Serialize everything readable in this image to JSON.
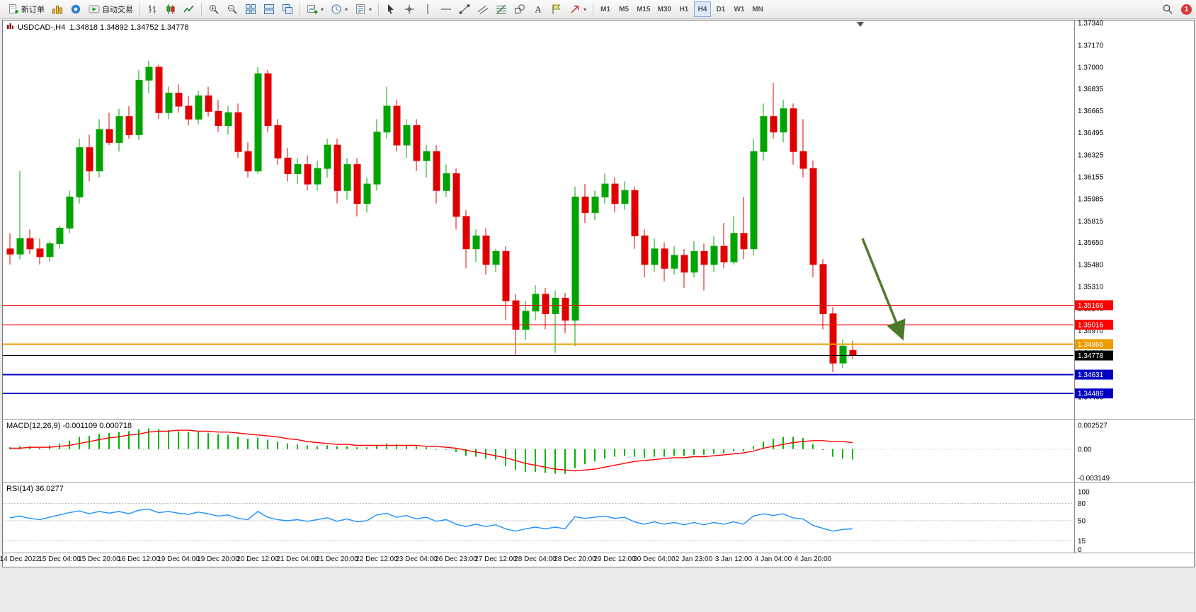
{
  "toolbar": {
    "groups": [
      {
        "buttons": [
          {
            "name": "new-order-button",
            "icon": "new-order-icon",
            "label": "新订单"
          },
          {
            "name": "charts-button",
            "icon": "charts-icon"
          },
          {
            "name": "community-button",
            "icon": "community-icon"
          },
          {
            "name": "autotrading-button",
            "icon": "autotrading-icon",
            "label": "自动交易"
          }
        ]
      },
      {
        "buttons": [
          {
            "name": "bars-chart-button",
            "icon": "ohlc-bars-icon"
          },
          {
            "name": "candles-chart-button",
            "icon": "candles-icon"
          },
          {
            "name": "line-chart-button",
            "icon": "line-chart-icon"
          }
        ]
      },
      {
        "buttons": [
          {
            "name": "zoom-in-button",
            "icon": "zoom-in-icon"
          },
          {
            "name": "zoom-out-button",
            "icon": "zoom-out-icon"
          },
          {
            "name": "tile-windows-button",
            "icon": "tile-windows-icon"
          },
          {
            "name": "window-list-button",
            "icon": "window-list-icon"
          },
          {
            "name": "cascade-windows-button",
            "icon": "cascade-icon"
          }
        ]
      },
      {
        "buttons": [
          {
            "name": "new-chart-button",
            "icon": "new-chart-icon",
            "dropdown": true
          },
          {
            "name": "periods-button",
            "icon": "clock-icon",
            "dropdown": true
          },
          {
            "name": "templates-button",
            "icon": "template-icon",
            "dropdown": true
          }
        ]
      },
      {
        "buttons": [
          {
            "name": "cursor-button",
            "icon": "cursor-icon"
          },
          {
            "name": "crosshair-button",
            "icon": "crosshair-icon"
          },
          {
            "name": "vertical-line-button",
            "icon": "vline-icon"
          },
          {
            "name": "horizontal-line-button",
            "icon": "hline-icon"
          },
          {
            "name": "trendline-button",
            "icon": "trendline-icon"
          },
          {
            "name": "channel-button",
            "icon": "channel-icon"
          },
          {
            "name": "fibonacci-button",
            "icon": "fibo-icon"
          },
          {
            "name": "shapes-button",
            "icon": "shapes-icon"
          },
          {
            "name": "text-button",
            "icon": "text-icon"
          },
          {
            "name": "label-button",
            "icon": "label-icon"
          },
          {
            "name": "arrows-button",
            "icon": "arrows-icon",
            "dropdown": true
          }
        ]
      }
    ],
    "timeframes": {
      "items": [
        "M1",
        "M5",
        "M15",
        "M30",
        "H1",
        "H4",
        "D1",
        "W1",
        "MN"
      ],
      "active": "H4"
    },
    "notification": {
      "count": "1"
    }
  },
  "chart_header": {
    "symbol": "USDCAD-,H4",
    "ohlc": "1.34818 1.34892 1.34752 1.34778"
  },
  "chart_data": [
    {
      "type": "candlestick",
      "title": "USDCAD H4",
      "up_color": "#00A400",
      "down_color": "#E00000",
      "y_range": [
        1.3429,
        1.3736
      ],
      "y_ticks": [
        "1.37340",
        "1.37170",
        "1.37000",
        "1.36835",
        "1.36665",
        "1.36495",
        "1.36325",
        "1.36155",
        "1.35985",
        "1.35815",
        "1.35650",
        "1.35480",
        "1.35310",
        "1.35140",
        "1.34970",
        "1.34800",
        "1.34630",
        "1.34460"
      ],
      "x_labels": [
        "14 Dec 2022",
        "15 Dec 04:00",
        "15 Dec 20:00",
        "16 Dec 12:00",
        "19 Dec 04:00",
        "19 Dec 20:00",
        "20 Dec 12:00",
        "21 Dec 04:00",
        "21 Dec 20:00",
        "22 Dec 12:00",
        "23 Dec 04:00",
        "26 Dec 23:00",
        "27 Dec 12:00",
        "28 Dec 04:00",
        "28 Dec 20:00",
        "29 Dec 12:00",
        "30 Dec 04:00",
        "2 Jan 23:00",
        "3 Jan 12:00",
        "4 Jan 04:00",
        "4 Jan 20:00"
      ],
      "levels": [
        {
          "price": 1.35166,
          "color": "#FF0000",
          "label": "1.35166",
          "width": 1,
          "type": "horizontal-line"
        },
        {
          "price": 1.35016,
          "color": "#FF0000",
          "label": "1.35016",
          "width": 1,
          "type": "horizontal-line"
        },
        {
          "price": 1.34866,
          "color": "#ED9B00",
          "label": "1.34866",
          "width": 2,
          "type": "horizontal-line"
        },
        {
          "price": 1.34778,
          "color": "#000000",
          "label": "1.34778",
          "width": 1,
          "type": "current-price-line"
        },
        {
          "price": 1.34631,
          "color": "#0000C0",
          "label": "1.34631",
          "width": 2,
          "type": "horizontal-line"
        },
        {
          "price": 1.34486,
          "color": "#0000C0",
          "label": "1.34486",
          "width": 2,
          "type": "horizontal-line"
        }
      ],
      "arrow": {
        "color": "#4C7A2A",
        "from": {
          "index": 86,
          "price": 1.3568
        },
        "to": {
          "index": 90,
          "price": 1.3492
        }
      },
      "ohlc": [
        [
          1.356,
          1.3572,
          1.3548,
          1.3556
        ],
        [
          1.3556,
          1.362,
          1.3552,
          1.3568
        ],
        [
          1.3568,
          1.3575,
          1.3556,
          1.356
        ],
        [
          1.356,
          1.3568,
          1.3548,
          1.3554
        ],
        [
          1.3554,
          1.3566,
          1.355,
          1.3564
        ],
        [
          1.3564,
          1.3578,
          1.356,
          1.3576
        ],
        [
          1.3576,
          1.3605,
          1.3572,
          1.36
        ],
        [
          1.36,
          1.3645,
          1.3595,
          1.3638
        ],
        [
          1.3638,
          1.3648,
          1.3612,
          1.362
        ],
        [
          1.362,
          1.366,
          1.3615,
          1.3652
        ],
        [
          1.3652,
          1.3665,
          1.364,
          1.3642
        ],
        [
          1.3642,
          1.3668,
          1.3635,
          1.3662
        ],
        [
          1.3662,
          1.367,
          1.3645,
          1.3648
        ],
        [
          1.3648,
          1.3698,
          1.3644,
          1.369
        ],
        [
          1.369,
          1.3705,
          1.368,
          1.37
        ],
        [
          1.37,
          1.3702,
          1.366,
          1.3665
        ],
        [
          1.3665,
          1.3685,
          1.366,
          1.368
        ],
        [
          1.368,
          1.3687,
          1.3665,
          1.367
        ],
        [
          1.367,
          1.3678,
          1.3655,
          1.366
        ],
        [
          1.366,
          1.3682,
          1.3656,
          1.3678
        ],
        [
          1.3678,
          1.3685,
          1.3662,
          1.3666
        ],
        [
          1.3666,
          1.3675,
          1.365,
          1.3655
        ],
        [
          1.3655,
          1.367,
          1.3648,
          1.3665
        ],
        [
          1.3665,
          1.3672,
          1.363,
          1.3635
        ],
        [
          1.3635,
          1.3642,
          1.3615,
          1.362
        ],
        [
          1.362,
          1.37,
          1.3618,
          1.3695
        ],
        [
          1.3695,
          1.3698,
          1.365,
          1.3655
        ],
        [
          1.3655,
          1.366,
          1.3625,
          1.363
        ],
        [
          1.363,
          1.3638,
          1.3612,
          1.3618
        ],
        [
          1.3618,
          1.363,
          1.361,
          1.3625
        ],
        [
          1.3625,
          1.3632,
          1.3605,
          1.361
        ],
        [
          1.361,
          1.3628,
          1.3605,
          1.3622
        ],
        [
          1.3622,
          1.3645,
          1.3615,
          1.364
        ],
        [
          1.364,
          1.3645,
          1.3595,
          1.3605
        ],
        [
          1.3605,
          1.363,
          1.3598,
          1.3625
        ],
        [
          1.3625,
          1.363,
          1.3585,
          1.3595
        ],
        [
          1.3595,
          1.3615,
          1.3588,
          1.361
        ],
        [
          1.361,
          1.366,
          1.3605,
          1.365
        ],
        [
          1.365,
          1.3685,
          1.3645,
          1.367
        ],
        [
          1.367,
          1.3675,
          1.3635,
          1.364
        ],
        [
          1.364,
          1.366,
          1.363,
          1.3655
        ],
        [
          1.3655,
          1.366,
          1.362,
          1.3628
        ],
        [
          1.3628,
          1.364,
          1.3615,
          1.3635
        ],
        [
          1.3635,
          1.364,
          1.3595,
          1.3605
        ],
        [
          1.3605,
          1.3625,
          1.36,
          1.3618
        ],
        [
          1.3618,
          1.3622,
          1.3575,
          1.3585
        ],
        [
          1.3585,
          1.359,
          1.3545,
          1.356
        ],
        [
          1.356,
          1.3575,
          1.355,
          1.357
        ],
        [
          1.357,
          1.3576,
          1.354,
          1.3548
        ],
        [
          1.3548,
          1.356,
          1.3542,
          1.3558
        ],
        [
          1.3558,
          1.3562,
          1.3505,
          1.352
        ],
        [
          1.352,
          1.3525,
          1.3478,
          1.3498
        ],
        [
          1.3498,
          1.352,
          1.349,
          1.3512
        ],
        [
          1.3512,
          1.3532,
          1.3505,
          1.3525
        ],
        [
          1.3525,
          1.353,
          1.3498,
          1.351
        ],
        [
          1.351,
          1.3528,
          1.348,
          1.3522
        ],
        [
          1.3522,
          1.3526,
          1.3495,
          1.3505
        ],
        [
          1.3505,
          1.3608,
          1.3485,
          1.36
        ],
        [
          1.36,
          1.361,
          1.358,
          1.3588
        ],
        [
          1.3588,
          1.3605,
          1.3582,
          1.36
        ],
        [
          1.36,
          1.3618,
          1.3595,
          1.361
        ],
        [
          1.361,
          1.3615,
          1.3588,
          1.3595
        ],
        [
          1.3595,
          1.3612,
          1.359,
          1.3605
        ],
        [
          1.3605,
          1.3608,
          1.356,
          1.357
        ],
        [
          1.357,
          1.3575,
          1.3538,
          1.3548
        ],
        [
          1.3548,
          1.3568,
          1.3542,
          1.356
        ],
        [
          1.356,
          1.3565,
          1.3535,
          1.3545
        ],
        [
          1.3545,
          1.3562,
          1.354,
          1.3555
        ],
        [
          1.3555,
          1.356,
          1.353,
          1.3542
        ],
        [
          1.3542,
          1.3566,
          1.3538,
          1.3558
        ],
        [
          1.3558,
          1.3564,
          1.3528,
          1.3548
        ],
        [
          1.3548,
          1.357,
          1.3542,
          1.3562
        ],
        [
          1.3562,
          1.358,
          1.3545,
          1.355
        ],
        [
          1.355,
          1.3585,
          1.3548,
          1.3572
        ],
        [
          1.3572,
          1.36,
          1.3552,
          1.356
        ],
        [
          1.356,
          1.3645,
          1.3555,
          1.3635
        ],
        [
          1.3635,
          1.3672,
          1.3628,
          1.3662
        ],
        [
          1.3662,
          1.3688,
          1.3645,
          1.365
        ],
        [
          1.365,
          1.3675,
          1.3642,
          1.3668
        ],
        [
          1.3668,
          1.3672,
          1.3625,
          1.3635
        ],
        [
          1.3635,
          1.366,
          1.3615,
          1.3622
        ],
        [
          1.3622,
          1.3628,
          1.3538,
          1.3548
        ],
        [
          1.3548,
          1.3552,
          1.3498,
          1.351
        ],
        [
          1.351,
          1.3515,
          1.3465,
          1.3472
        ],
        [
          1.3472,
          1.349,
          1.3468,
          1.3485
        ],
        [
          1.34818,
          1.34892,
          1.34752,
          1.34778
        ]
      ]
    },
    {
      "type": "bar",
      "name": "MACD(12,26,9)",
      "label": "MACD(12,26,9) -0.001109 0.000718",
      "bar_color": "#00B400",
      "signal_color": "#FF0000",
      "y_range": [
        -0.003149,
        0.002527
      ],
      "y_ticks": [
        "0.002527",
        "0.00",
        "-0.003149"
      ],
      "values": [
        0.0002,
        0.0003,
        0.0003,
        0.0002,
        0.0004,
        0.0006,
        0.0009,
        0.0013,
        0.0014,
        0.0016,
        0.0017,
        0.0018,
        0.0019,
        0.0021,
        0.0022,
        0.0021,
        0.002,
        0.0019,
        0.0018,
        0.0018,
        0.0017,
        0.0016,
        0.0015,
        0.0013,
        0.0011,
        0.0012,
        0.001,
        0.0008,
        0.0006,
        0.0005,
        0.0004,
        0.0003,
        0.0004,
        0.0003,
        0.0003,
        0.0002,
        0.0002,
        0.0004,
        0.0006,
        0.0005,
        0.0004,
        0.0003,
        0.0002,
        0.0,
        0.0,
        -0.0003,
        -0.0007,
        -0.0008,
        -0.001,
        -0.0011,
        -0.0018,
        -0.0022,
        -0.0024,
        -0.0024,
        -0.0025,
        -0.0026,
        -0.0026,
        -0.002,
        -0.0016,
        -0.0013,
        -0.001,
        -0.0008,
        -0.0007,
        -0.0008,
        -0.0009,
        -0.0008,
        -0.0008,
        -0.0007,
        -0.0007,
        -0.0006,
        -0.0006,
        -0.0005,
        -0.0004,
        -0.0002,
        -0.0002,
        0.0003,
        0.0008,
        0.0011,
        0.0013,
        0.0013,
        0.0012,
        0.0005,
        -0.0001,
        -0.0008,
        -0.001,
        -0.0011
      ],
      "signal": [
        0.0001,
        0.0001,
        0.0002,
        0.0002,
        0.0002,
        0.0003,
        0.0004,
        0.0006,
        0.0008,
        0.001,
        0.0012,
        0.0013,
        0.0015,
        0.0016,
        0.0018,
        0.0019,
        0.0019,
        0.002,
        0.002,
        0.0019,
        0.0019,
        0.0018,
        0.0018,
        0.0017,
        0.0016,
        0.0015,
        0.0014,
        0.0013,
        0.0011,
        0.001,
        0.0008,
        0.0007,
        0.0006,
        0.0005,
        0.0005,
        0.0004,
        0.0004,
        0.0004,
        0.0004,
        0.0004,
        0.0004,
        0.0004,
        0.0003,
        0.0003,
        0.0002,
        0.0001,
        -0.0001,
        -0.0003,
        -0.0005,
        -0.0007,
        -0.0009,
        -0.0012,
        -0.0015,
        -0.0017,
        -0.0019,
        -0.0021,
        -0.0022,
        -0.0023,
        -0.0022,
        -0.0021,
        -0.0019,
        -0.0017,
        -0.0015,
        -0.0013,
        -0.0012,
        -0.0011,
        -0.001,
        -0.0009,
        -0.0009,
        -0.0008,
        -0.0008,
        -0.0007,
        -0.0006,
        -0.0005,
        -0.0004,
        -0.0002,
        0.0001,
        0.0003,
        0.0005,
        0.0007,
        0.0008,
        0.0009,
        0.0009,
        0.0008,
        0.0008,
        0.0007
      ]
    },
    {
      "type": "line",
      "name": "RSI(14)",
      "label": "RSI(14) 36.0277",
      "line_color": "#1E90FF",
      "y_range": [
        0,
        100
      ],
      "y_ticks": [
        "100",
        "80",
        "50",
        "15",
        "0"
      ],
      "levels": [
        80,
        50,
        15
      ],
      "values": [
        55,
        58,
        54,
        52,
        56,
        60,
        64,
        67,
        62,
        66,
        63,
        66,
        62,
        68,
        70,
        64,
        66,
        63,
        61,
        65,
        62,
        58,
        60,
        54,
        52,
        66,
        56,
        52,
        50,
        52,
        49,
        52,
        55,
        49,
        53,
        48,
        50,
        60,
        63,
        56,
        59,
        53,
        56,
        49,
        52,
        44,
        40,
        44,
        40,
        43,
        36,
        32,
        36,
        39,
        36,
        39,
        36,
        57,
        54,
        56,
        58,
        54,
        56,
        48,
        44,
        48,
        44,
        47,
        43,
        47,
        43,
        47,
        44,
        48,
        44,
        58,
        62,
        59,
        62,
        55,
        53,
        42,
        37,
        32,
        35,
        36
      ]
    }
  ]
}
